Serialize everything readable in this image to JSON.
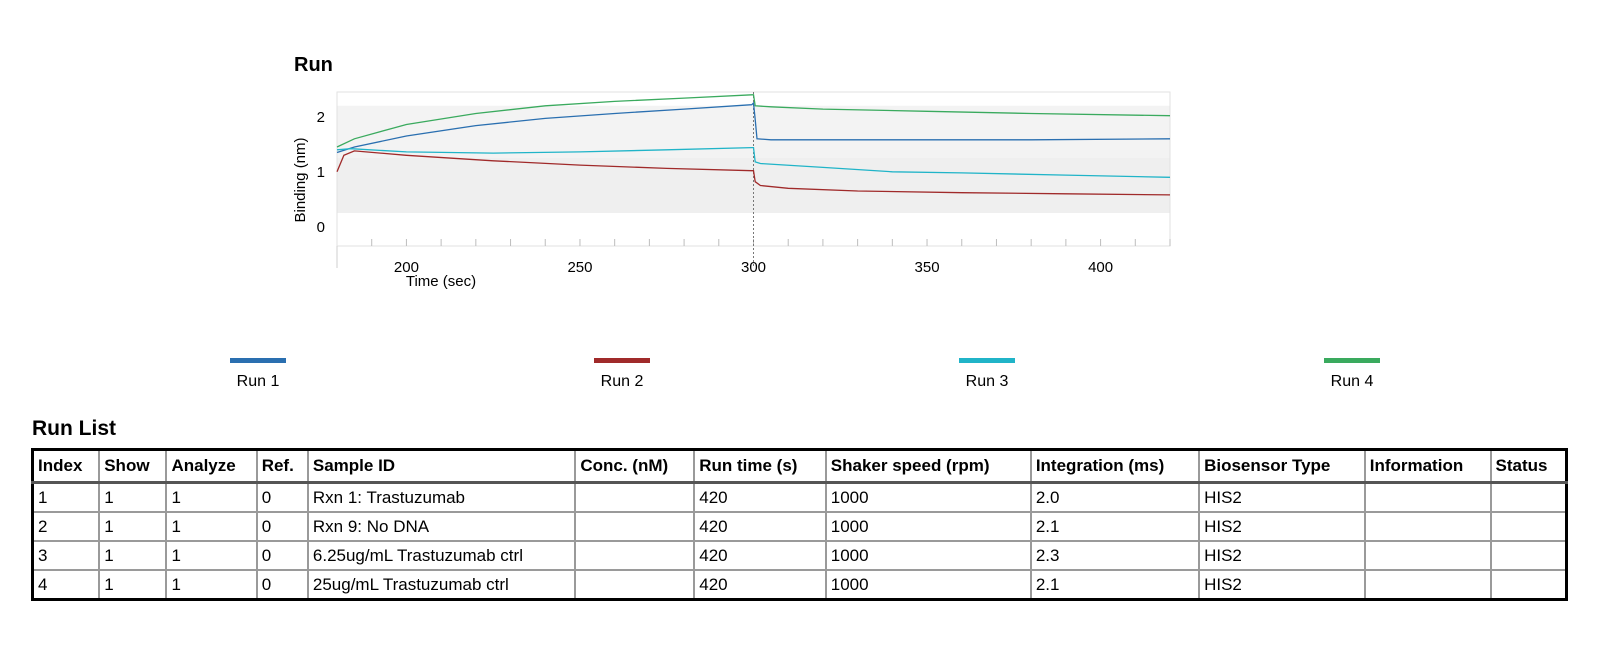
{
  "chart_data": {
    "type": "line",
    "title": "Run",
    "xlabel": "Time (sec)",
    "ylabel": "Binding (nm)",
    "xlim": [
      180,
      420
    ],
    "ylim": [
      -0.35,
      2.45
    ],
    "xticks": [
      200,
      250,
      300,
      350,
      400
    ],
    "yticks": [
      0,
      1,
      2
    ],
    "marker_x": 300,
    "grid": false,
    "legend_position": "bottom",
    "series": [
      {
        "name": "Run 1",
        "color": "#2a6fb0",
        "points": [
          [
            180,
            1.35
          ],
          [
            185,
            1.45
          ],
          [
            200,
            1.65
          ],
          [
            220,
            1.84
          ],
          [
            240,
            1.97
          ],
          [
            260,
            2.06
          ],
          [
            280,
            2.14
          ],
          [
            299.5,
            2.22
          ],
          [
            300,
            2.25
          ],
          [
            300.5,
            1.95
          ],
          [
            301,
            1.6
          ],
          [
            305,
            1.58
          ],
          [
            320,
            1.58
          ],
          [
            350,
            1.58
          ],
          [
            380,
            1.58
          ],
          [
            420,
            1.6
          ]
        ]
      },
      {
        "name": "Run 2",
        "color": "#a02a2a",
        "points": [
          [
            180,
            1.0
          ],
          [
            182,
            1.3
          ],
          [
            185,
            1.38
          ],
          [
            200,
            1.3
          ],
          [
            225,
            1.2
          ],
          [
            250,
            1.12
          ],
          [
            275,
            1.06
          ],
          [
            299.5,
            1.02
          ],
          [
            300,
            1.02
          ],
          [
            300.5,
            0.82
          ],
          [
            302,
            0.75
          ],
          [
            310,
            0.7
          ],
          [
            330,
            0.65
          ],
          [
            360,
            0.62
          ],
          [
            390,
            0.6
          ],
          [
            420,
            0.58
          ]
        ]
      },
      {
        "name": "Run 3",
        "color": "#20b4c8",
        "points": [
          [
            180,
            1.4
          ],
          [
            184,
            1.42
          ],
          [
            200,
            1.36
          ],
          [
            225,
            1.34
          ],
          [
            250,
            1.36
          ],
          [
            275,
            1.4
          ],
          [
            299.5,
            1.44
          ],
          [
            300,
            1.44
          ],
          [
            300.5,
            1.18
          ],
          [
            302,
            1.15
          ],
          [
            320,
            1.08
          ],
          [
            340,
            1.0
          ],
          [
            360,
            0.98
          ],
          [
            390,
            0.94
          ],
          [
            420,
            0.9
          ]
        ]
      },
      {
        "name": "Run 4",
        "color": "#3aaa5e",
        "points": [
          [
            180,
            1.45
          ],
          [
            185,
            1.6
          ],
          [
            200,
            1.86
          ],
          [
            220,
            2.06
          ],
          [
            240,
            2.2
          ],
          [
            260,
            2.28
          ],
          [
            280,
            2.34
          ],
          [
            299.5,
            2.4
          ],
          [
            300,
            2.4
          ],
          [
            300.5,
            2.2
          ],
          [
            305,
            2.18
          ],
          [
            320,
            2.14
          ],
          [
            350,
            2.1
          ],
          [
            380,
            2.06
          ],
          [
            420,
            2.02
          ]
        ]
      }
    ]
  },
  "table": {
    "title": "Run List",
    "headers": [
      "Index",
      "Show",
      "Analyze",
      "Ref.",
      "Sample ID",
      "Conc. (nM)",
      "Run time (s)",
      "Shaker speed (rpm)",
      "Integration (ms)",
      "Biosensor Type",
      "Information",
      "Status"
    ],
    "rows": [
      [
        "1",
        "1",
        "1",
        "0",
        "Rxn 1: Trastuzumab",
        "",
        "420",
        "1000",
        "2.0",
        "HIS2",
        "",
        ""
      ],
      [
        "2",
        "1",
        "1",
        "0",
        "Rxn 9: No DNA",
        "",
        "420",
        "1000",
        "2.1",
        "HIS2",
        "",
        ""
      ],
      [
        "3",
        "1",
        "1",
        "0",
        "6.25ug/mL Trastuzumab ctrl",
        "",
        "420",
        "1000",
        "2.3",
        "HIS2",
        "",
        ""
      ],
      [
        "4",
        "1",
        "1",
        "0",
        "25ug/mL Trastuzumab ctrl",
        "",
        "420",
        "1000",
        "2.1",
        "HIS2",
        "",
        ""
      ]
    ]
  }
}
